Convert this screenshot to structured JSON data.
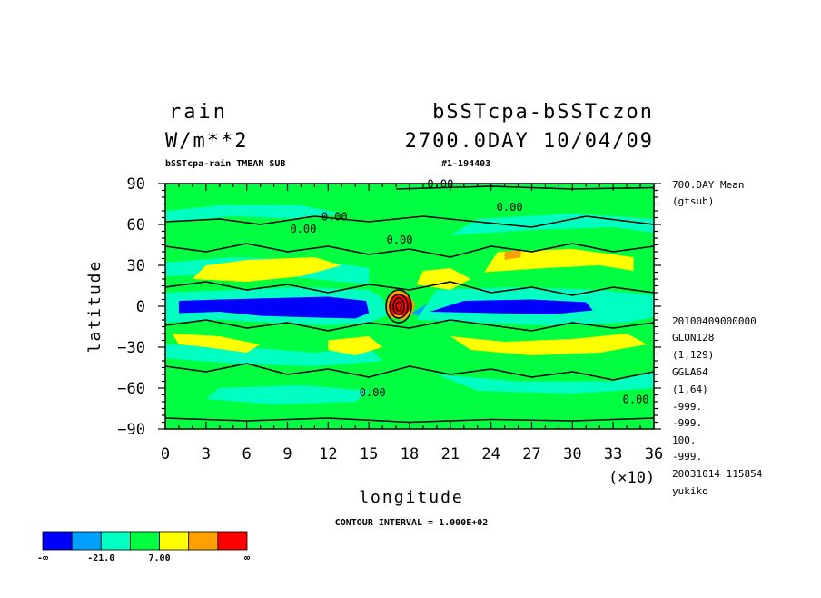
{
  "chart_data": {
    "type": "heatmap",
    "title_left": [
      "rain",
      "W/m**2"
    ],
    "title_right": [
      "bSSTcpa-bSSTczon",
      "2700.0DAY 10/04/09"
    ],
    "subtitle_left": "bSSTcpa-rain TMEAN SUB",
    "subtitle_right": "#1-194403",
    "xlabel": "longitude",
    "ylabel": "latitude",
    "x_multiplier": "(×10)",
    "xlim": [
      0,
      36
    ],
    "ylim": [
      -90,
      90
    ],
    "x_ticks": [
      "0",
      "3",
      "6",
      "9",
      "12",
      "15",
      "18",
      "21",
      "24",
      "27",
      "30",
      "33",
      "36"
    ],
    "y_ticks": [
      "90",
      "60",
      "30",
      "0",
      "−30",
      "−60",
      "−90"
    ],
    "contour_labels": [
      "0.00",
      "0.00",
      "0.00",
      "0.00",
      "0.00",
      "0.00",
      "0.00"
    ],
    "contour_interval_text": "CONTOUR INTERVAL = 1.000E+02",
    "colorbar": {
      "colors": [
        "#0000ff",
        "#00a0ff",
        "#00ffc0",
        "#00ff40",
        "#ffff00",
        "#ffa000",
        "#ff0000"
      ],
      "labels": [
        "-∞",
        "-21.0",
        "7.00",
        "∞"
      ]
    },
    "side_top": [
      "700.DAY Mean",
      "(gtsub)"
    ],
    "side_info": [
      "20100409000000",
      "GLON128",
      "(1,129)",
      "GGLA64",
      "(1,64)",
      "-999.",
      "-999.",
      "100.",
      "-999.",
      "20031014 115854",
      "yukiko"
    ]
  }
}
